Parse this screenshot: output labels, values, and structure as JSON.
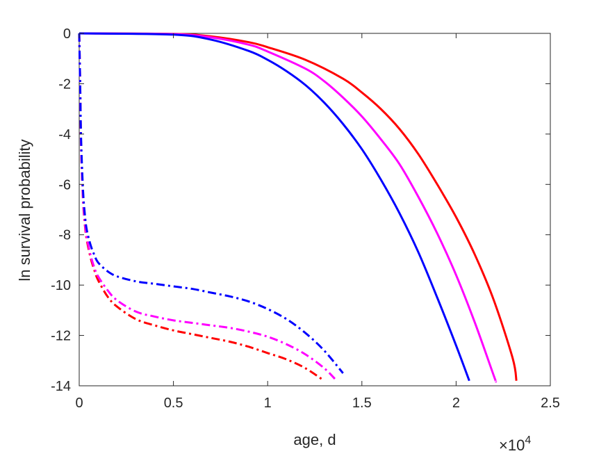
{
  "chart_data": {
    "type": "line",
    "xlabel": "age, d",
    "ylabel": "ln survival probability",
    "x_multiplier_label": {
      "base": "×10",
      "exponent": "4"
    },
    "xlim": [
      0,
      25000
    ],
    "ylim": [
      -14,
      0
    ],
    "xticks": [
      0,
      5000,
      10000,
      15000,
      20000,
      25000
    ],
    "xtick_labels": [
      "0",
      "0.5",
      "1",
      "1.5",
      "2",
      "2.5"
    ],
    "yticks": [
      0,
      -2,
      -4,
      -6,
      -8,
      -10,
      -12,
      -14
    ],
    "ytick_labels": [
      "0",
      "-2",
      "-4",
      "-6",
      "-8",
      "-10",
      "-12",
      "-14"
    ],
    "grid": false,
    "box": true,
    "series": [
      {
        "color": "#ff0000",
        "style": "solid",
        "x": [
          0,
          5000,
          7000,
          9000,
          10000,
          12000,
          14000,
          15000,
          16000,
          17000,
          18000,
          19000,
          20000,
          21000,
          22000,
          23000,
          23200
        ],
        "y": [
          0,
          -0.02,
          -0.12,
          -0.35,
          -0.55,
          -1.05,
          -1.8,
          -2.35,
          -3.0,
          -3.8,
          -4.8,
          -6.0,
          -7.3,
          -8.8,
          -10.6,
          -12.9,
          -13.8
        ]
      },
      {
        "color": "#ff00ff",
        "style": "solid",
        "x": [
          0,
          5000,
          7000,
          9000,
          10000,
          12000,
          13000,
          14000,
          15000,
          16000,
          17000,
          18000,
          19000,
          20000,
          21000,
          22000,
          22100
        ],
        "y": [
          0,
          -0.03,
          -0.16,
          -0.45,
          -0.72,
          -1.4,
          -1.9,
          -2.55,
          -3.3,
          -4.2,
          -5.2,
          -6.5,
          -7.95,
          -9.6,
          -11.5,
          -13.6,
          -13.8
        ]
      },
      {
        "color": "#0000ff",
        "style": "solid",
        "x": [
          0,
          5000,
          7000,
          9000,
          10000,
          11000,
          12000,
          13000,
          14000,
          15000,
          16000,
          17000,
          18000,
          19000,
          20000,
          20700
        ],
        "y": [
          0,
          -0.05,
          -0.25,
          -0.7,
          -1.05,
          -1.5,
          -2.05,
          -2.75,
          -3.6,
          -4.6,
          -5.8,
          -7.15,
          -8.7,
          -10.5,
          -12.4,
          -13.8
        ]
      },
      {
        "color": "#ff0000",
        "style": "dashdot",
        "x": [
          0,
          50,
          100,
          200,
          300,
          400,
          600,
          800,
          1000,
          1500,
          2000,
          3000,
          4000,
          5000,
          6000,
          7000,
          8000,
          9000,
          10000,
          11000,
          12000,
          13000
        ],
        "y": [
          0,
          -2.0,
          -4.5,
          -6.6,
          -7.6,
          -8.2,
          -8.9,
          -9.4,
          -9.8,
          -10.45,
          -10.85,
          -11.35,
          -11.6,
          -11.8,
          -11.95,
          -12.1,
          -12.25,
          -12.45,
          -12.7,
          -12.95,
          -13.3,
          -13.8
        ]
      },
      {
        "color": "#ff00ff",
        "style": "dashdot",
        "x": [
          0,
          50,
          100,
          200,
          300,
          400,
          600,
          800,
          1000,
          1500,
          2000,
          3000,
          4000,
          5000,
          6000,
          7000,
          8000,
          9000,
          10000,
          11000,
          12000,
          13000,
          13600
        ],
        "y": [
          0,
          -2.0,
          -4.5,
          -6.5,
          -7.5,
          -8.1,
          -8.8,
          -9.3,
          -9.65,
          -10.2,
          -10.6,
          -11.05,
          -11.25,
          -11.4,
          -11.5,
          -11.6,
          -11.7,
          -11.85,
          -12.05,
          -12.35,
          -12.75,
          -13.3,
          -13.75
        ]
      },
      {
        "color": "#0000ff",
        "style": "dashdot",
        "x": [
          0,
          50,
          100,
          200,
          300,
          400,
          600,
          800,
          1000,
          1500,
          2000,
          3000,
          4000,
          5000,
          6000,
          7000,
          8000,
          9000,
          10000,
          11000,
          12000,
          13000,
          14000
        ],
        "y": [
          0,
          -2.0,
          -4.2,
          -6.2,
          -7.2,
          -7.8,
          -8.4,
          -8.8,
          -9.1,
          -9.45,
          -9.65,
          -9.85,
          -9.95,
          -10.05,
          -10.15,
          -10.3,
          -10.45,
          -10.65,
          -10.95,
          -11.35,
          -11.9,
          -12.6,
          -13.5
        ]
      }
    ]
  }
}
